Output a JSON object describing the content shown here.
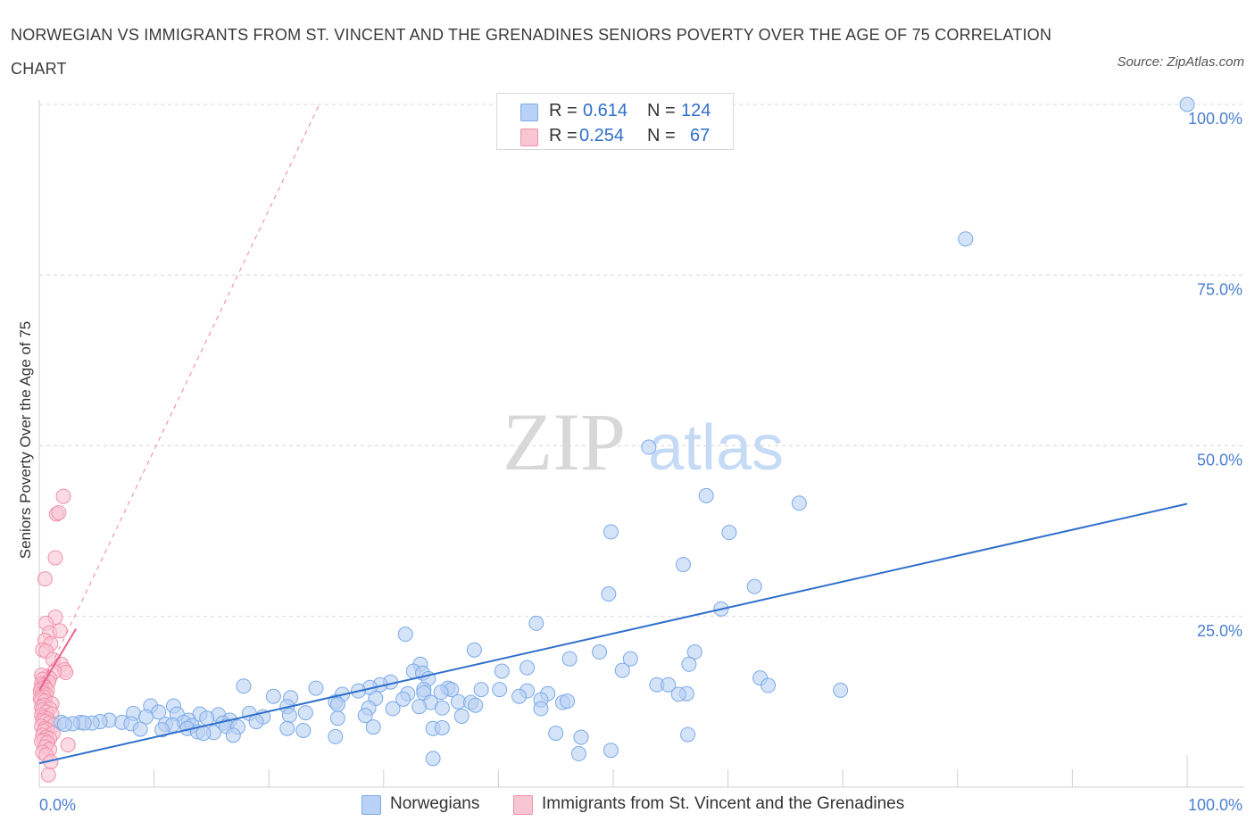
{
  "title": "NORWEGIAN VS IMMIGRANTS FROM ST. VINCENT AND THE GRENADINES SENIORS POVERTY OVER THE AGE OF 75 CORRELATION CHART",
  "source": "Source: ZipAtlas.com",
  "watermark": {
    "zip": "ZIP",
    "atlas": "atlas"
  },
  "legend": {
    "rows": [
      {
        "r_label": "R =",
        "r_value": "0.614",
        "n_label": "N =",
        "n_value": "124",
        "color": "#7aaae8",
        "fill": "#b9d1f4"
      },
      {
        "r_label": "R =",
        "r_value": "0.254",
        "n_label": "N =",
        "n_value": "67",
        "color": "#f090aa",
        "fill": "#f8c5d3"
      }
    ]
  },
  "bottom_legend": {
    "norwegians": "Norwegians",
    "immigrants": "Immigrants from St. Vincent and the Grenadines"
  },
  "colors": {
    "blue": "#2f6fcb",
    "blue_fill": "#b9d1f4",
    "blue_stroke": "#7aaae8",
    "pink": "#e8638c",
    "pink_fill": "#f8c5d3",
    "pink_stroke": "#f090aa",
    "grid": "#d9d9d9",
    "axis_text": "#4a7fd0"
  },
  "chart_data": {
    "type": "scatter",
    "title": "NORWEGIAN VS IMMIGRANTS FROM ST. VINCENT AND THE GRENADINES SENIORS POVERTY OVER THE AGE OF 75 CORRELATION CHART",
    "xlabel": "",
    "ylabel": "Seniors Poverty Over the Age of 75",
    "xlim": [
      0,
      100
    ],
    "ylim": [
      0,
      100
    ],
    "x_tick_labels": [
      "0.0%",
      "100.0%"
    ],
    "y_tick_labels": [
      {
        "value": 25,
        "label": "25.0%"
      },
      {
        "value": 50,
        "label": "50.0%"
      },
      {
        "value": 75,
        "label": "75.0%"
      },
      {
        "value": 100,
        "label": "100.0%"
      }
    ],
    "grid": true,
    "series": [
      {
        "name": "Norwegians",
        "color": "#2f6fcb",
        "trend": {
          "x": [
            0,
            100
          ],
          "y": [
            3.5,
            41.5
          ]
        },
        "points": [
          [
            100,
            100
          ],
          [
            80.7,
            80.3
          ],
          [
            53.1,
            49.8
          ],
          [
            58.1,
            42.7
          ],
          [
            66.2,
            41.6
          ],
          [
            49.8,
            37.4
          ],
          [
            60.1,
            37.3
          ],
          [
            56.1,
            32.6
          ],
          [
            62.3,
            29.4
          ],
          [
            49.6,
            28.3
          ],
          [
            59.4,
            26.1
          ],
          [
            43.3,
            24.0
          ],
          [
            31.9,
            22.4
          ],
          [
            37.9,
            20.1
          ],
          [
            48.8,
            19.8
          ],
          [
            57.1,
            19.8
          ],
          [
            46.2,
            18.8
          ],
          [
            51.5,
            18.8
          ],
          [
            33.2,
            18.0
          ],
          [
            56.6,
            18.0
          ],
          [
            42.5,
            17.5
          ],
          [
            50.8,
            17.1
          ],
          [
            32.6,
            17.0
          ],
          [
            40.3,
            17.0
          ],
          [
            33.4,
            16.7
          ],
          [
            62.8,
            16.0
          ],
          [
            33.9,
            15.9
          ],
          [
            30.6,
            15.4
          ],
          [
            29.7,
            15.0
          ],
          [
            53.8,
            15.0
          ],
          [
            54.8,
            15.0
          ],
          [
            63.5,
            14.9
          ],
          [
            17.8,
            14.8
          ],
          [
            28.8,
            14.6
          ],
          [
            35.6,
            14.5
          ],
          [
            24.1,
            14.5
          ],
          [
            33.5,
            14.3
          ],
          [
            35.9,
            14.3
          ],
          [
            38.5,
            14.3
          ],
          [
            40.1,
            14.3
          ],
          [
            27.8,
            14.1
          ],
          [
            42.5,
            14.1
          ],
          [
            35.0,
            13.9
          ],
          [
            33.5,
            13.8
          ],
          [
            32.1,
            13.7
          ],
          [
            69.8,
            14.2
          ],
          [
            56.4,
            13.7
          ],
          [
            44.3,
            13.7
          ],
          [
            26.4,
            13.6
          ],
          [
            41.8,
            13.3
          ],
          [
            20.4,
            13.3
          ],
          [
            21.9,
            13.1
          ],
          [
            29.3,
            13.0
          ],
          [
            31.7,
            12.9
          ],
          [
            43.7,
            12.8
          ],
          [
            55.7,
            13.6
          ],
          [
            36.5,
            12.5
          ],
          [
            25.8,
            12.5
          ],
          [
            45.6,
            12.4
          ],
          [
            34.1,
            12.4
          ],
          [
            37.6,
            12.4
          ],
          [
            46.0,
            12.6
          ],
          [
            11.7,
            11.9
          ],
          [
            26.0,
            12.1
          ],
          [
            38.0,
            12.0
          ],
          [
            9.7,
            11.9
          ],
          [
            33.1,
            11.8
          ],
          [
            21.6,
            11.8
          ],
          [
            28.7,
            11.6
          ],
          [
            35.1,
            11.6
          ],
          [
            30.8,
            11.5
          ],
          [
            43.7,
            11.5
          ],
          [
            10.4,
            11.0
          ],
          [
            8.2,
            10.8
          ],
          [
            23.2,
            10.9
          ],
          [
            18.3,
            10.8
          ],
          [
            14.0,
            10.7
          ],
          [
            12.0,
            10.7
          ],
          [
            15.6,
            10.6
          ],
          [
            28.4,
            10.5
          ],
          [
            9.3,
            10.3
          ],
          [
            21.8,
            10.5
          ],
          [
            19.5,
            10.3
          ],
          [
            36.8,
            10.4
          ],
          [
            14.6,
            10.1
          ],
          [
            26.0,
            10.1
          ],
          [
            13.0,
            9.8
          ],
          [
            6.1,
            9.8
          ],
          [
            16.6,
            9.8
          ],
          [
            5.3,
            9.6
          ],
          [
            18.9,
            9.6
          ],
          [
            16.0,
            9.4
          ],
          [
            12.6,
            9.5
          ],
          [
            3.6,
            9.5
          ],
          [
            4.6,
            9.4
          ],
          [
            7.2,
            9.5
          ],
          [
            8.0,
            9.3
          ],
          [
            3.9,
            9.4
          ],
          [
            1.9,
            9.5
          ],
          [
            2.9,
            9.3
          ],
          [
            2.2,
            9.2
          ],
          [
            11.0,
            9.2
          ],
          [
            11.6,
            9.1
          ],
          [
            13.3,
            9.0
          ],
          [
            16.3,
            8.9
          ],
          [
            17.3,
            8.8
          ],
          [
            29.1,
            8.8
          ],
          [
            34.3,
            8.6
          ],
          [
            35.1,
            8.7
          ],
          [
            12.9,
            8.6
          ],
          [
            10.7,
            8.4
          ],
          [
            8.8,
            8.5
          ],
          [
            21.6,
            8.6
          ],
          [
            23.0,
            8.3
          ],
          [
            13.8,
            8.1
          ],
          [
            15.2,
            8.0
          ],
          [
            14.3,
            7.9
          ],
          [
            16.9,
            7.6
          ],
          [
            45.0,
            7.9
          ],
          [
            47.2,
            7.3
          ],
          [
            56.5,
            7.7
          ],
          [
            25.8,
            7.4
          ],
          [
            34.3,
            4.2
          ],
          [
            47.0,
            4.9
          ],
          [
            49.8,
            5.4
          ]
        ]
      },
      {
        "name": "Immigrants from St. Vincent and the Grenadines",
        "color": "#e8638c",
        "trend_solid": {
          "x": [
            0,
            3.2
          ],
          "y": [
            14.2,
            23.2
          ]
        },
        "trend_dashed": {
          "x": [
            0,
            24.4
          ],
          "y": [
            14.2,
            100
          ]
        },
        "points": [
          [
            2.1,
            42.6
          ],
          [
            1.5,
            40.0
          ],
          [
            1.7,
            40.2
          ],
          [
            1.4,
            33.6
          ],
          [
            0.5,
            30.5
          ],
          [
            1.4,
            24.9
          ],
          [
            0.6,
            24.0
          ],
          [
            0.9,
            22.6
          ],
          [
            1.8,
            22.9
          ],
          [
            0.5,
            21.5
          ],
          [
            1.0,
            21.0
          ],
          [
            0.3,
            20.1
          ],
          [
            0.6,
            19.9
          ],
          [
            1.2,
            18.7
          ],
          [
            1.9,
            18.0
          ],
          [
            2.2,
            17.2
          ],
          [
            2.3,
            16.8
          ],
          [
            1.3,
            16.9
          ],
          [
            0.7,
            16.2
          ],
          [
            0.9,
            16.0
          ],
          [
            0.2,
            16.4
          ],
          [
            0.3,
            15.8
          ],
          [
            0.8,
            15.4
          ],
          [
            0.2,
            15.1
          ],
          [
            0.4,
            14.9
          ],
          [
            0.5,
            14.6
          ],
          [
            0.7,
            14.2
          ],
          [
            0.2,
            14.4
          ],
          [
            0.1,
            14.1
          ],
          [
            0.3,
            13.8
          ],
          [
            0.6,
            13.5
          ],
          [
            0.4,
            13.2
          ],
          [
            0.1,
            13.0
          ],
          [
            0.2,
            12.7
          ],
          [
            0.5,
            12.6
          ],
          [
            1.1,
            12.2
          ],
          [
            0.4,
            12.0
          ],
          [
            0.2,
            11.7
          ],
          [
            0.9,
            11.5
          ],
          [
            0.3,
            11.3
          ],
          [
            0.6,
            11.0
          ],
          [
            1.1,
            10.7
          ],
          [
            0.2,
            10.5
          ],
          [
            0.4,
            10.2
          ],
          [
            0.7,
            10.0
          ],
          [
            0.3,
            9.8
          ],
          [
            0.5,
            9.6
          ],
          [
            0.9,
            9.4
          ],
          [
            1.3,
            9.1
          ],
          [
            0.2,
            8.9
          ],
          [
            0.5,
            8.6
          ],
          [
            0.7,
            8.4
          ],
          [
            0.4,
            8.2
          ],
          [
            1.2,
            7.9
          ],
          [
            0.3,
            7.6
          ],
          [
            0.6,
            7.3
          ],
          [
            0.9,
            7.1
          ],
          [
            0.4,
            6.9
          ],
          [
            0.2,
            6.7
          ],
          [
            0.7,
            6.5
          ],
          [
            2.5,
            6.2
          ],
          [
            0.5,
            5.9
          ],
          [
            0.9,
            5.5
          ],
          [
            0.3,
            5.1
          ],
          [
            0.6,
            4.7
          ],
          [
            1.0,
            3.7
          ],
          [
            0.8,
            1.8
          ]
        ]
      }
    ]
  }
}
